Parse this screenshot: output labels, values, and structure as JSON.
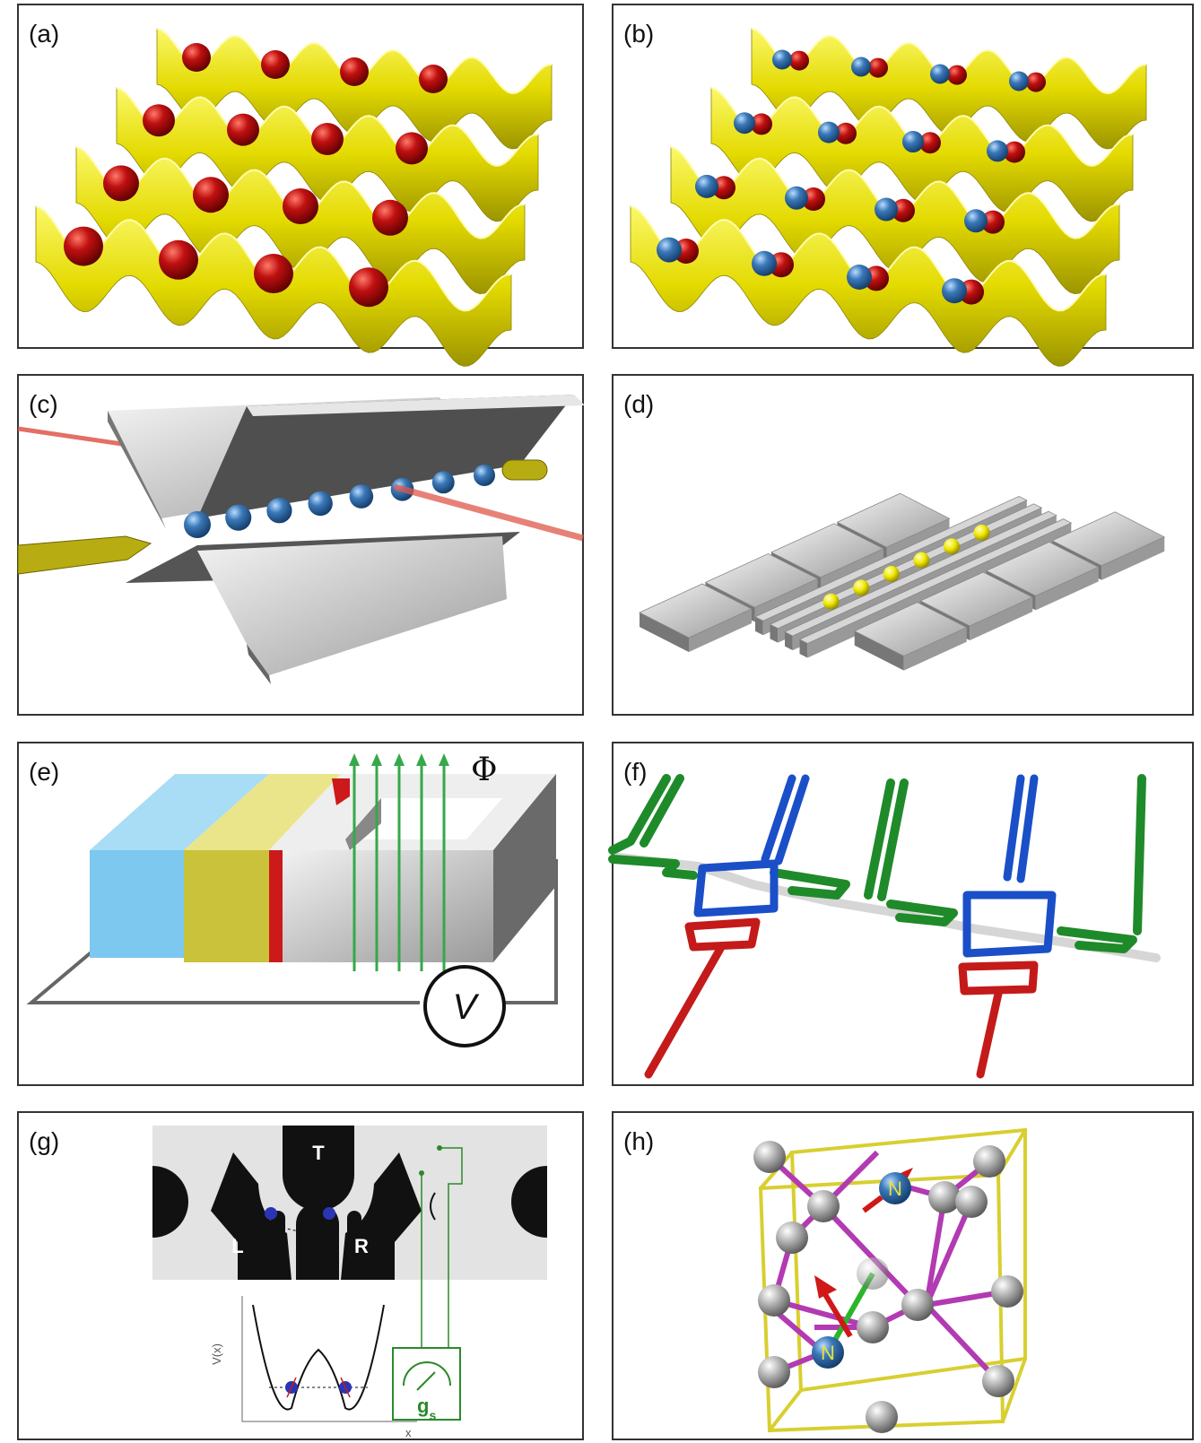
{
  "panels": [
    {
      "label": "(a)"
    },
    {
      "label": "(b)"
    },
    {
      "label": "(c)"
    },
    {
      "label": "(d)"
    },
    {
      "label": "(e)",
      "flux": "Φ",
      "voltmeter": "V"
    },
    {
      "label": "(f)"
    },
    {
      "label": "(g)",
      "gates": [
        "T",
        "L",
        "R"
      ],
      "y_axis": "V(x)",
      "x_axis": "x",
      "meter": "g",
      "meter_subscript": "s"
    },
    {
      "label": "(h)",
      "atoms": [
        "N",
        "N"
      ]
    }
  ]
}
